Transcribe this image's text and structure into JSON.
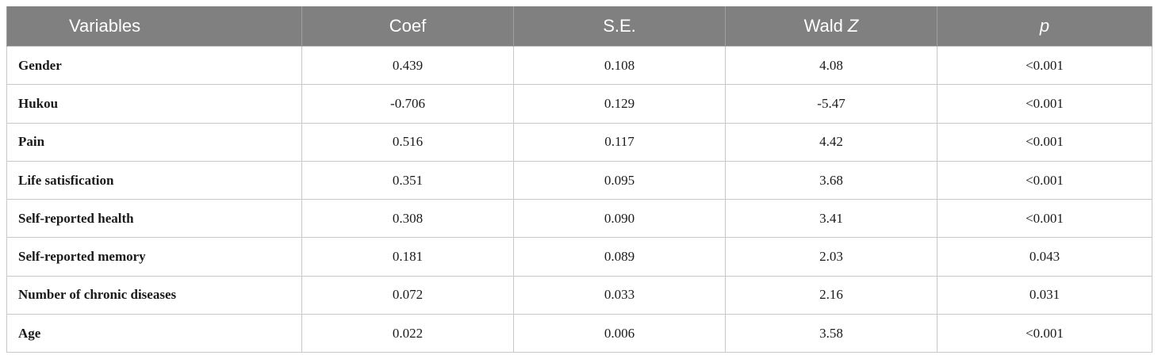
{
  "table": {
    "headers": [
      {
        "text": "Variables"
      },
      {
        "text": "Coef"
      },
      {
        "text": "S.E."
      },
      {
        "text": "Wald",
        "italic": "Z"
      },
      {
        "italic": "p"
      }
    ],
    "rows": [
      [
        "Gender",
        "0.439",
        "0.108",
        "4.08",
        "<0.001"
      ],
      [
        "Hukou",
        "-0.706",
        "0.129",
        "-5.47",
        "<0.001"
      ],
      [
        "Pain",
        "0.516",
        "0.117",
        "4.42",
        "<0.001"
      ],
      [
        "Life satisfication",
        "0.351",
        "0.095",
        "3.68",
        "<0.001"
      ],
      [
        "Self-reported health",
        "0.308",
        "0.090",
        "3.41",
        "<0.001"
      ],
      [
        "Self-reported memory",
        "0.181",
        "0.089",
        "2.03",
        "0.043"
      ],
      [
        "Number of chronic diseases",
        "0.072",
        "0.033",
        "2.16",
        "0.031"
      ],
      [
        "Age",
        "0.022",
        "0.006",
        "3.58",
        "<0.001"
      ]
    ]
  }
}
